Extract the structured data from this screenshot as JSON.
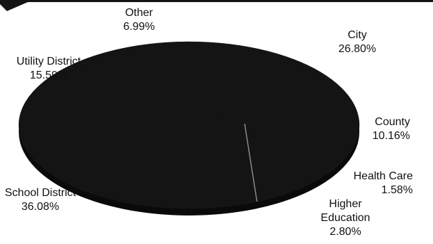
{
  "chart_data": {
    "type": "pie",
    "style": "3d",
    "title": "",
    "legend": "none",
    "slices": [
      {
        "name": "City",
        "value": 26.8,
        "label": "26.80%"
      },
      {
        "name": "County",
        "value": 10.16,
        "label": "10.16%"
      },
      {
        "name": "Health Care",
        "value": 1.58,
        "label": "1.58%"
      },
      {
        "name": "Higher Education",
        "value": 2.8,
        "label": "2.80%"
      },
      {
        "name": "School District",
        "value": 36.08,
        "label": "36.08%"
      },
      {
        "name": "Utility District",
        "value": 15.59,
        "label": "15.59%"
      },
      {
        "name": "Other",
        "value": 6.99,
        "label": "6.99%"
      }
    ],
    "colors": {
      "slice_fill": "#141414",
      "slice_side": "#0a0a0a",
      "divider": "#8a8a8a",
      "banner": "#141414"
    }
  }
}
